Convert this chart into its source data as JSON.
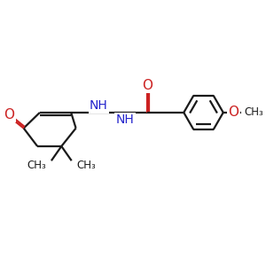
{
  "background_color": "#ffffff",
  "bond_color": "#1a1a1a",
  "nitrogen_color": "#2222cc",
  "oxygen_color": "#cc2222",
  "font_size": 10,
  "line_width": 1.6,
  "fig_width": 3.0,
  "fig_height": 3.0,
  "dpi": 100,
  "xlim": [
    0,
    10
  ],
  "ylim": [
    1,
    9
  ]
}
